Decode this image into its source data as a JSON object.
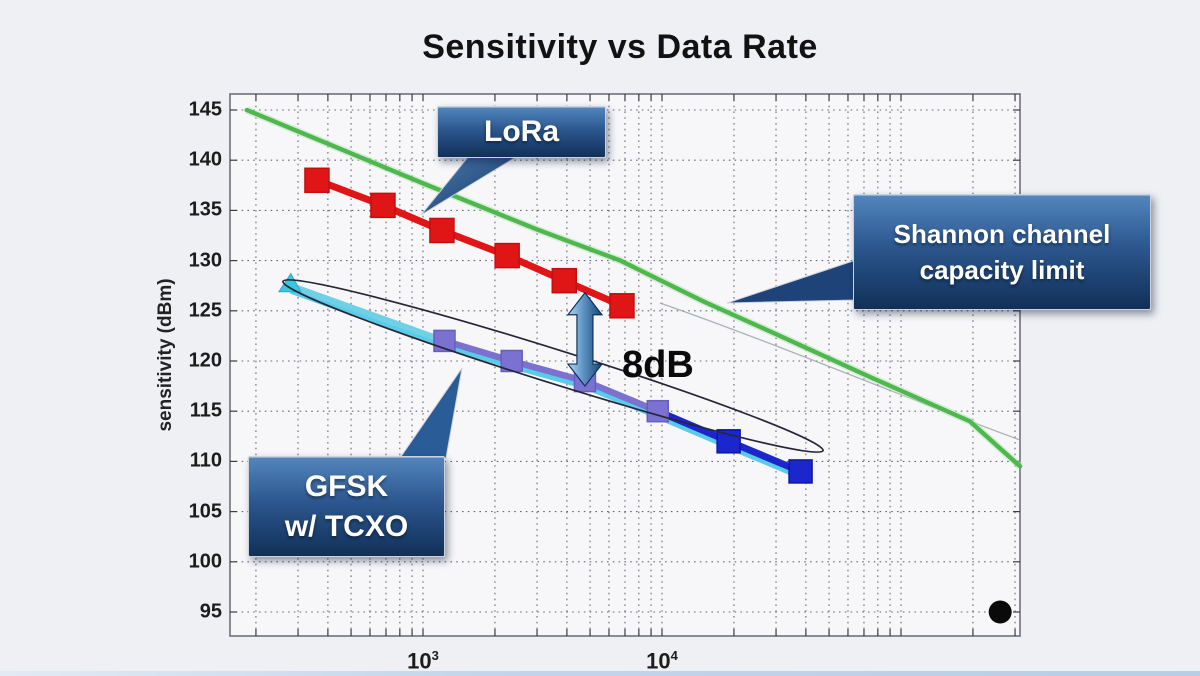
{
  "chart_data": {
    "type": "line",
    "title": "Sensitivity vs Data Rate",
    "xlabel": "",
    "ylabel": "sensitivity (dBm)",
    "x_axis": {
      "scale": "log",
      "range": [
        160,
        315000
      ],
      "major_ticks": [
        {
          "base": "10",
          "exp": "3",
          "value": 1000
        },
        {
          "base": "10",
          "exp": "4",
          "value": 10000
        }
      ],
      "grid": "dotted minor and major log gridlines"
    },
    "y_axis": {
      "ticks": [
        145,
        140,
        135,
        130,
        125,
        120,
        115,
        110,
        105,
        100,
        95
      ],
      "range": [
        92.5,
        146.5
      ],
      "unit": "dBm"
    },
    "grid": true,
    "legend": "none (callout boxes instead)",
    "series": [
      {
        "name": "Shannon channel capacity limit",
        "type": "line",
        "color": "#4eb84e",
        "x": [
          183,
          1000,
          3000,
          6700,
          15000,
          28000,
          76000,
          194000,
          315000
        ],
        "y": [
          145,
          137.7,
          133.1,
          130,
          125.9,
          123,
          118.3,
          114,
          109.5
        ]
      },
      {
        "name": "LoRa",
        "type": "line+markers",
        "marker": "square",
        "color": "#e01515",
        "x": [
          360,
          680,
          1200,
          2250,
          3900,
          6800
        ],
        "y": [
          138,
          135.5,
          133,
          130.5,
          128,
          125.5
        ]
      },
      {
        "name": "GFSK w/ TCXO",
        "type": "line+markers",
        "marker": "square",
        "start_marker": "triangle",
        "segment_colors": {
          "start": "#52c9e6",
          "mid": "#7b71d0",
          "end": "#1b27cc"
        },
        "x": [
          280,
          1230,
          2350,
          4760,
          9600,
          19000,
          38000
        ],
        "y": [
          127.5,
          122,
          120,
          118,
          115,
          112,
          109
        ]
      }
    ],
    "annotations": [
      {
        "type": "double_arrow_label",
        "text": "8dB",
        "x": 4760,
        "y_from": 126.8,
        "y_to": 118
      },
      {
        "type": "ellipse_highlight",
        "around_series": "GFSK w/ TCXO"
      },
      {
        "type": "dot",
        "x": 260000,
        "y": 95,
        "color": "#0a0a0a"
      }
    ],
    "callouts": [
      {
        "id": "lora",
        "lines": [
          "LoRa"
        ]
      },
      {
        "id": "shannon",
        "lines": [
          "Shannon channel",
          "capacity limit"
        ]
      },
      {
        "id": "gfsk",
        "lines": [
          "GFSK",
          "w/ TCXO"
        ]
      }
    ]
  },
  "colors": {
    "page_bg": "#eff0f4",
    "plot_bg": "#f7f7fa",
    "grid": "#50505c",
    "border": "#70707a",
    "shannon_green": "#4eb84e",
    "lora_red": "#e01515",
    "gfsk_purple": "#7b71d0",
    "gfsk_blue": "#1b27cc",
    "gfsk_cyan": "#52c9e6",
    "callout_top": "#5386bd",
    "callout_bottom": "#113058",
    "annotation_text": "#0a0a0a"
  }
}
